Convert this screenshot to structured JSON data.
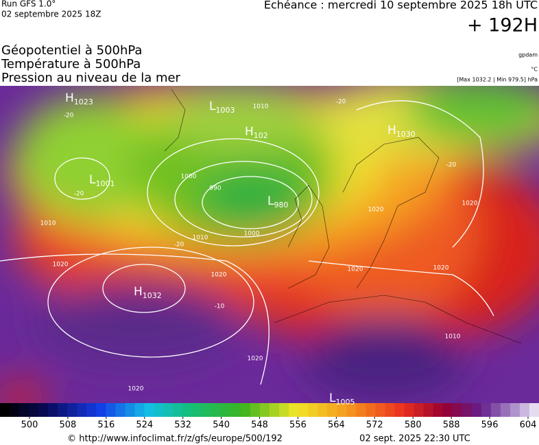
{
  "header": {
    "run": "Run GFS 1.0°",
    "date": "02 septembre 2025 18Z",
    "echeance": "Echéance : mercredi 10 septembre 2025 18h UTC",
    "lead": "+ 192H"
  },
  "titles": [
    "Géopotentiel à 500hPa",
    "Température à 500hPa",
    "Pression au niveau de la mer"
  ],
  "units": [
    "gpdam",
    "°C",
    "[Max 1032.2 | Min 979.5] hPa"
  ],
  "pressure_centers": [
    {
      "kind": "H",
      "value": "1023"
    },
    {
      "kind": "L",
      "value": "1003"
    },
    {
      "kind": "H",
      "value": "102"
    },
    {
      "kind": "L",
      "value": "1001"
    },
    {
      "kind": "L",
      "value": "980"
    },
    {
      "kind": "H",
      "value": "1030"
    },
    {
      "kind": "H",
      "value": "1032"
    },
    {
      "kind": "L",
      "value": "1005"
    }
  ],
  "contour_labels": [
    "1010",
    "-20",
    "-20",
    "-20",
    "-20",
    "1000",
    "990",
    "1010",
    "1000",
    "1010",
    "-20",
    "1020",
    "1020",
    "1020",
    "1020",
    "1020",
    "-10",
    "1020",
    "1020",
    "1010",
    "1020"
  ],
  "colorbar": {
    "ticks": [
      500,
      508,
      516,
      524,
      532,
      540,
      548,
      556,
      564,
      572,
      580,
      588,
      596,
      604
    ]
  },
  "footer": {
    "url": "© http://www.infoclimat.fr/z/gfs/europe/500/192",
    "generated": "02 sept. 2025 22:30 UTC"
  }
}
